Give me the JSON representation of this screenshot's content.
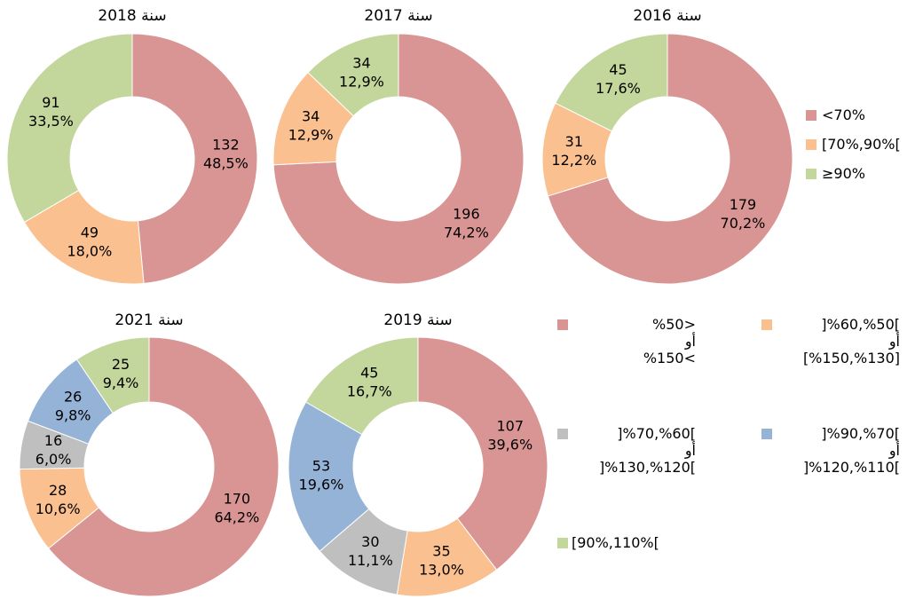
{
  "chart_data": [
    {
      "type": "donut",
      "title": "سنة 2018",
      "categories": [
        "<70%",
        "[70%,90%[",
        "≥90%"
      ],
      "colors": [
        "#d99594",
        "#fac090",
        "#c3d69b"
      ],
      "values": [
        132,
        49,
        91
      ],
      "percentage_labels": [
        "48,5%",
        "18,0%",
        "33,5%"
      ]
    },
    {
      "type": "donut",
      "title": "سنة 2017",
      "categories": [
        "<70%",
        "[70%,90%[",
        "≥90%"
      ],
      "colors": [
        "#d99594",
        "#fac090",
        "#c3d69b"
      ],
      "values": [
        196,
        34,
        34
      ],
      "percentage_labels": [
        "74,2%",
        "12,9%",
        "12,9%"
      ]
    },
    {
      "type": "donut",
      "title": "سنة 2016",
      "categories": [
        "<70%",
        "[70%,90%[",
        "≥90%"
      ],
      "colors": [
        "#d99594",
        "#fac090",
        "#c3d69b"
      ],
      "values": [
        179,
        31,
        45
      ],
      "percentage_labels": [
        "70,2%",
        "12,2%",
        "17,6%"
      ]
    },
    {
      "type": "donut",
      "title": "سنة 2021",
      "categories": [
        "%50>\nأو\n%150<",
        "]%60,%50[\nأو\n[%150,%130]",
        "]%70,%60[\nأو\n]%130,%120[",
        "]%90,%70[\nأو\n]%120,%110[",
        "[90%,110%["
      ],
      "colors": [
        "#d99594",
        "#fac090",
        "#bfbfbf",
        "#95b3d7",
        "#c3d69b"
      ],
      "values": [
        170,
        28,
        16,
        26,
        25
      ],
      "percentage_labels": [
        "64,2%",
        "10,6%",
        "6,0%",
        "9,8%",
        "9,4%"
      ]
    },
    {
      "type": "donut",
      "title": "سنة 2019",
      "categories": [
        "%50>\nأو\n%150<",
        "]%60,%50[\nأو\n[%150,%130]",
        "]%70,%60[\nأو\n]%130,%120[",
        "]%90,%70[\nأو\n]%120,%110[",
        "[90%,110%["
      ],
      "colors": [
        "#d99594",
        "#fac090",
        "#bfbfbf",
        "#95b3d7",
        "#c3d69b"
      ],
      "values": [
        107,
        35,
        30,
        53,
        45
      ],
      "percentage_labels": [
        "39,6%",
        "13,0%",
        "11,1%",
        "19,6%",
        "16,7%"
      ]
    }
  ]
}
